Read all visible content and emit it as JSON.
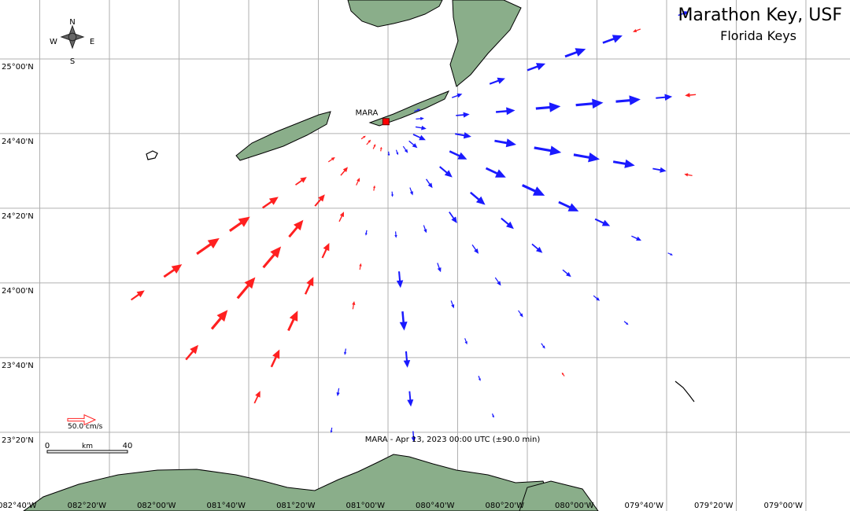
{
  "header": {
    "title": "Marathon Key, USF",
    "subtitle": "Florida Keys"
  },
  "station": {
    "label": "MARA",
    "lon": -81.01,
    "lat": 24.72
  },
  "caption": "MARA - Apr 13, 2023 00:00 UTC (±90.0 min)",
  "compass": {
    "n": "N",
    "s": "S",
    "e": "E",
    "w": "W"
  },
  "map": {
    "lon_lim": [
      -82.857,
      -78.789
    ],
    "lat_lim": [
      22.982,
      25.263
    ],
    "lon_ticks": [
      {
        "value": -82.6667,
        "label": "082°40'W"
      },
      {
        "value": -82.3333,
        "label": "082°20'W"
      },
      {
        "value": -82,
        "label": "082°00'W"
      },
      {
        "value": -81.6667,
        "label": "081°40'W"
      },
      {
        "value": -81.3333,
        "label": "081°20'W"
      },
      {
        "value": -81,
        "label": "081°00'W"
      },
      {
        "value": -80.6667,
        "label": "080°40'W"
      },
      {
        "value": -80.3333,
        "label": "080°20'W"
      },
      {
        "value": -80,
        "label": "080°00'W"
      },
      {
        "value": -79.6667,
        "label": "079°40'W"
      },
      {
        "value": -79.3333,
        "label": "079°20'W"
      },
      {
        "value": -79,
        "label": "079°00'W"
      }
    ],
    "lat_ticks": [
      {
        "value": 25,
        "label": "25°00'N"
      },
      {
        "value": 24.6667,
        "label": "24°40'N"
      },
      {
        "value": 24.3333,
        "label": "24°20'N"
      },
      {
        "value": 24,
        "label": "24°00'N"
      },
      {
        "value": 23.6667,
        "label": "23°40'N"
      },
      {
        "value": 23.3333,
        "label": "23°20'N"
      }
    ]
  },
  "scale_arrow": {
    "speed": 50,
    "label": "50.0 cm/s"
  },
  "scale_bar": {
    "ticks": [
      0,
      40
    ],
    "unit": "km"
  },
  "vectors": {
    "away_color": "#1a1aff",
    "toward_color": "#ff2020",
    "bearings": [
      70,
      85,
      100,
      115,
      130,
      145,
      160,
      175,
      190,
      205,
      220,
      235
    ],
    "ranges_km": [
      15,
      35,
      55,
      75,
      95,
      115,
      135,
      155
    ],
    "speeds": [
      [
        12,
        20,
        30,
        35,
        40,
        38,
        -15,
        20
      ],
      [
        15,
        25,
        35,
        45,
        50,
        45,
        30,
        -20
      ],
      [
        20,
        30,
        40,
        50,
        48,
        40,
        25,
        -15
      ],
      [
        25,
        35,
        40,
        45,
        40,
        30,
        20,
        10
      ],
      [
        20,
        30,
        35,
        30,
        25,
        20,
        15,
        10
      ],
      [
        15,
        20,
        25,
        20,
        18,
        15,
        12,
        -8
      ],
      [
        10,
        15,
        15,
        18,
        15,
        12,
        10,
        8
      ],
      [
        8,
        10,
        12,
        30,
        35,
        30,
        28,
        20
      ],
      [
        -8,
        -10,
        10,
        -12,
        -15,
        12,
        15,
        10
      ],
      [
        -10,
        -15,
        -20,
        -30,
        -35,
        -40,
        -35,
        -25
      ],
      [
        -12,
        -20,
        -28,
        -40,
        -50,
        -50,
        -45,
        -35
      ],
      [
        -10,
        -15,
        -25,
        -35,
        -45,
        -50,
        -40,
        -30
      ]
    ]
  }
}
